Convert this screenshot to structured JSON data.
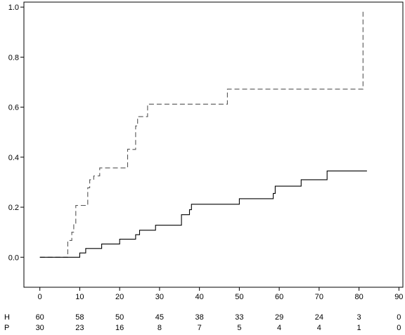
{
  "chart_data": {
    "type": "line",
    "title": "",
    "xlabel": "",
    "ylabel": "",
    "xlim": [
      -4,
      91
    ],
    "ylim": [
      -0.12,
      1.02
    ],
    "x_ticks": [
      0,
      10,
      20,
      30,
      40,
      50,
      60,
      70,
      80,
      90
    ],
    "y_ticks": [
      0.0,
      0.2,
      0.4,
      0.6,
      0.8,
      1.0
    ],
    "x_tick_labels": [
      "0",
      "10",
      "20",
      "30",
      "40",
      "50",
      "60",
      "70",
      "80",
      "90"
    ],
    "y_tick_labels": [
      "0.0",
      "0.2",
      "0.4",
      "0.6",
      "0.8",
      "1.0"
    ],
    "grid": false,
    "legend": false,
    "series": [
      {
        "style": "dashed",
        "color": "#555555",
        "points": [
          [
            0,
            0
          ],
          [
            7,
            0
          ],
          [
            7,
            0.067
          ],
          [
            8,
            0.067
          ],
          [
            8,
            0.1
          ],
          [
            8.5,
            0.1
          ],
          [
            8.5,
            0.133
          ],
          [
            9,
            0.133
          ],
          [
            9,
            0.207
          ],
          [
            12,
            0.207
          ],
          [
            12,
            0.278
          ],
          [
            12.5,
            0.278
          ],
          [
            12.5,
            0.31
          ],
          [
            13.5,
            0.31
          ],
          [
            13.5,
            0.325
          ],
          [
            15,
            0.325
          ],
          [
            15,
            0.357
          ],
          [
            22,
            0.357
          ],
          [
            22,
            0.432
          ],
          [
            23,
            0.432
          ],
          [
            23,
            0.431
          ],
          [
            24,
            0.431
          ],
          [
            24,
            0.525
          ],
          [
            24.5,
            0.525
          ],
          [
            24.5,
            0.562
          ],
          [
            27,
            0.562
          ],
          [
            27,
            0.612
          ],
          [
            47,
            0.612
          ],
          [
            47,
            0.672
          ],
          [
            81,
            0.672
          ],
          [
            81,
            0.99
          ]
        ]
      },
      {
        "style": "solid",
        "color": "#000000",
        "points": [
          [
            0,
            0
          ],
          [
            10,
            0
          ],
          [
            10,
            0.017
          ],
          [
            11.5,
            0.017
          ],
          [
            11.5,
            0.035
          ],
          [
            15.5,
            0.035
          ],
          [
            15.5,
            0.053
          ],
          [
            20,
            0.053
          ],
          [
            20,
            0.072
          ],
          [
            24,
            0.072
          ],
          [
            24,
            0.09
          ],
          [
            25,
            0.09
          ],
          [
            25,
            0.108
          ],
          [
            29,
            0.108
          ],
          [
            29,
            0.128
          ],
          [
            35.5,
            0.128
          ],
          [
            35.5,
            0.17
          ],
          [
            37.5,
            0.17
          ],
          [
            37.5,
            0.19
          ],
          [
            38,
            0.19
          ],
          [
            38,
            0.212
          ],
          [
            50,
            0.212
          ],
          [
            50,
            0.234
          ],
          [
            58.5,
            0.234
          ],
          [
            58.5,
            0.255
          ],
          [
            59,
            0.255
          ],
          [
            59,
            0.284
          ],
          [
            65.5,
            0.284
          ],
          [
            65.5,
            0.31
          ],
          [
            72,
            0.31
          ],
          [
            72,
            0.345
          ],
          [
            82,
            0.345
          ]
        ]
      }
    ],
    "risk_table": {
      "times": [
        0,
        10,
        20,
        30,
        40,
        50,
        60,
        70,
        80,
        90
      ],
      "rows": [
        {
          "label": "H",
          "values": [
            "60",
            "58",
            "50",
            "45",
            "38",
            "33",
            "29",
            "24",
            "3",
            "0"
          ]
        },
        {
          "label": "P",
          "values": [
            "30",
            "23",
            "16",
            "8",
            "7",
            "5",
            "4",
            "4",
            "1",
            "0"
          ]
        }
      ]
    }
  }
}
